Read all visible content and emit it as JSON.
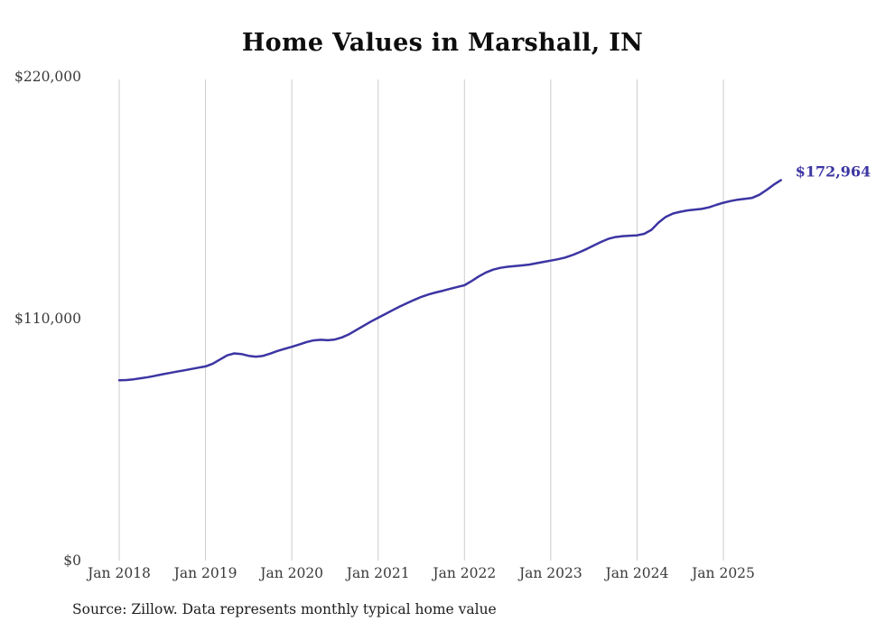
{
  "title": "Home Values in Marshall, IN",
  "source_note": "Source: Zillow. Data represents monthly typical home value",
  "end_label": "$172,964",
  "colors": {
    "line": "#3c35a3",
    "grid": "#cccccc",
    "axis_text": "#3a3a3a",
    "title_text": "#0e0e0e",
    "source_text": "#1d1d1d"
  },
  "chart_data": {
    "type": "line",
    "title": "Home Values in Marshall, IN",
    "xlabel": "",
    "ylabel": "",
    "ylim": [
      0,
      220000
    ],
    "y_ticks": [
      {
        "value": 0,
        "label": "$0"
      },
      {
        "value": 110000,
        "label": "$110,000"
      },
      {
        "value": 220000,
        "label": "$220,000"
      }
    ],
    "x_tick_labels": [
      "Jan 2018",
      "Jan 2019",
      "Jan 2020",
      "Jan 2021",
      "Jan 2022",
      "Jan 2023",
      "Jan 2024",
      "Jan 2025"
    ],
    "x_start_month": "2018-01",
    "x_end_month": "2025-09",
    "cadence": "monthly",
    "grid": "vertical-only",
    "legend": "none",
    "end_value": 172964,
    "series": [
      {
        "name": "Typical home value",
        "values": [
          82000,
          82100,
          82400,
          82900,
          83400,
          84000,
          84700,
          85300,
          85900,
          86500,
          87100,
          87700,
          88300,
          89500,
          91400,
          93300,
          94200,
          93900,
          93100,
          92700,
          93100,
          94100,
          95300,
          96300,
          97200,
          98200,
          99300,
          100100,
          100400,
          100200,
          100500,
          101500,
          103000,
          104900,
          106800,
          108700,
          110400,
          112100,
          113800,
          115500,
          117000,
          118500,
          119900,
          121000,
          121900,
          122700,
          123600,
          124400,
          125200,
          127100,
          129200,
          131000,
          132300,
          133100,
          133600,
          133900,
          134200,
          134600,
          135200,
          135800,
          136400,
          137000,
          137800,
          138900,
          140200,
          141700,
          143300,
          144900,
          146300,
          147100,
          147500,
          147700,
          147900,
          148600,
          150400,
          153700,
          156300,
          157800,
          158600,
          159200,
          159600,
          159900,
          160600,
          161700,
          162700,
          163500,
          164100,
          164500,
          164900,
          166300,
          168500,
          170900,
          172964
        ]
      }
    ]
  }
}
